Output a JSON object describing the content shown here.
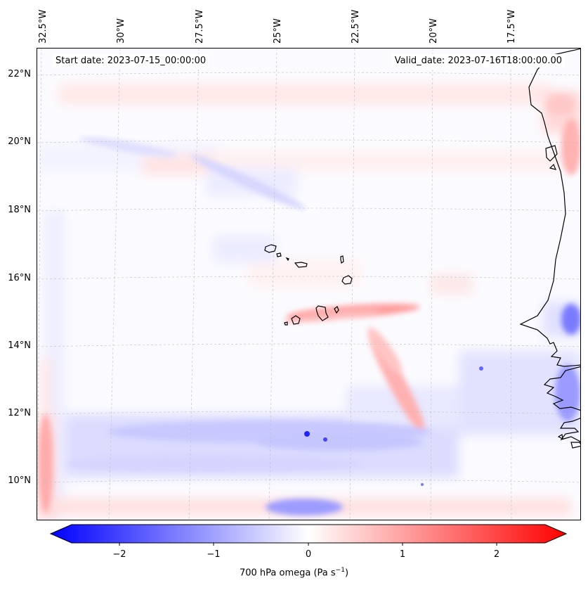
{
  "map": {
    "start_date": "Start date: 2023-07-15_00:00:00",
    "valid_date": "Valid_date: 2023-07-16T18:00:00.00",
    "longitude_labels": [
      "32.5°W",
      "30°W",
      "27.5°W",
      "25°W",
      "22.5°W",
      "20°W",
      "17.5°W"
    ],
    "latitude_labels": [
      "22°N",
      "20°N",
      "18°N",
      "16°N",
      "14°N",
      "12°N",
      "10°N"
    ],
    "variable": "700 hPa omega",
    "features": [
      "Cape Verde islands",
      "West African coastline (Senegal / Gambia / Guinea-Bissau)"
    ]
  },
  "colorbar": {
    "label_main": "700 hPa omega (Pa s",
    "label_sup": "−1",
    "label_close": ")",
    "tick_labels": [
      "−2",
      "−1",
      "0",
      "1",
      "2"
    ],
    "tick_values": [
      -2,
      -1,
      0,
      1,
      2
    ],
    "range": [
      -2.5,
      2.5
    ],
    "colors": {
      "min": "#0000ff",
      "mid": "#ffffff",
      "max": "#ff0000"
    }
  }
}
